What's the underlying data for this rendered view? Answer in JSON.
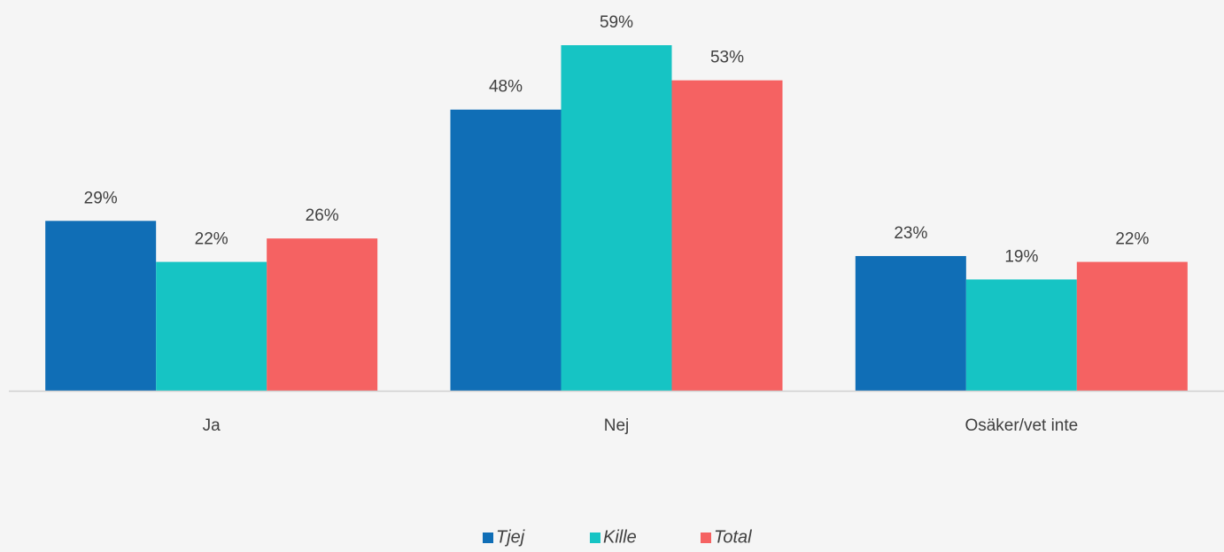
{
  "chart_data": {
    "type": "bar",
    "categories": [
      "Ja",
      "Nej",
      "Osäker/vet inte"
    ],
    "series": [
      {
        "name": "Tjej",
        "color": "#106eb6",
        "values": [
          29,
          48,
          23
        ],
        "value_labels": [
          "29%",
          "48%",
          "23%"
        ]
      },
      {
        "name": "Kille",
        "color": "#16c4c4",
        "values": [
          22,
          59,
          19
        ],
        "value_labels": [
          "22%",
          "59%",
          "19%"
        ]
      },
      {
        "name": "Total",
        "color": "#f56262",
        "values": [
          26,
          53,
          22
        ],
        "value_labels": [
          "26%",
          "53%",
          "22%"
        ]
      }
    ],
    "legend": "bottom"
  }
}
